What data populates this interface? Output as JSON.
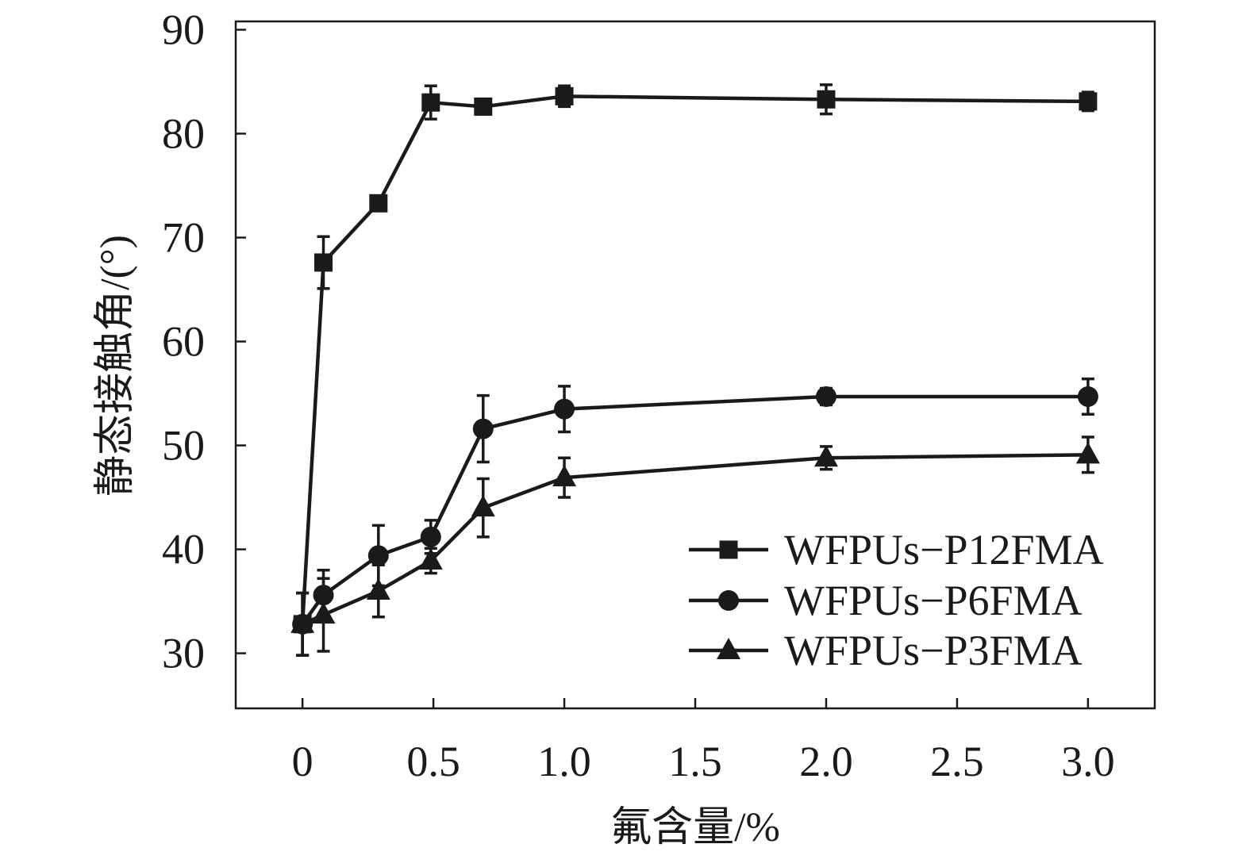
{
  "chart_data": {
    "type": "line",
    "title": "",
    "xlabel": "氟含量/%",
    "ylabel": "静态接触角/(°)",
    "xlim": [
      -0.255,
      3.255
    ],
    "ylim": [
      24.7,
      90.8
    ],
    "xticks": [
      0,
      0.5,
      1.0,
      1.5,
      2.0,
      2.5,
      3.0
    ],
    "xtick_labels": [
      "0",
      "0.5",
      "1.0",
      "1.5",
      "2.0",
      "2.5",
      "3.0"
    ],
    "yticks": [
      30,
      40,
      50,
      60,
      70,
      80,
      90
    ],
    "ytick_labels": [
      "30",
      "40",
      "50",
      "60",
      "70",
      "80",
      "90"
    ],
    "grid": false,
    "legend": "lower-right",
    "series": [
      {
        "name": "WFPUs−P12FMA",
        "marker": "square",
        "x": [
          0,
          0.08,
          0.29,
          0.49,
          0.69,
          1.0,
          2.0,
          3.0
        ],
        "y": [
          32.8,
          67.6,
          73.3,
          83.0,
          82.6,
          83.6,
          83.3,
          83.1
        ],
        "error": [
          3.0,
          2.5,
          0.7,
          1.6,
          0.6,
          1.0,
          1.4,
          0.9
        ]
      },
      {
        "name": "WFPUs−P6FMA",
        "marker": "circle",
        "x": [
          0,
          0.08,
          0.29,
          0.49,
          0.69,
          1.0,
          2.0,
          3.0
        ],
        "y": [
          32.8,
          35.6,
          39.4,
          41.2,
          51.6,
          53.5,
          54.7,
          54.7
        ],
        "error": [
          3.0,
          2.4,
          2.9,
          1.6,
          3.2,
          2.2,
          0.8,
          1.7
        ]
      },
      {
        "name": "WFPUs−P3FMA",
        "marker": "triangle",
        "x": [
          0,
          0.08,
          0.29,
          0.49,
          0.69,
          1.0,
          2.0,
          3.0
        ],
        "y": [
          32.8,
          33.7,
          36.0,
          38.9,
          44.0,
          46.9,
          48.8,
          49.1
        ],
        "error": [
          3.0,
          3.5,
          2.5,
          1.2,
          2.8,
          1.9,
          1.1,
          1.7
        ]
      }
    ]
  },
  "style": {
    "ink": "#1a1a1a",
    "background": "#ffffff"
  }
}
